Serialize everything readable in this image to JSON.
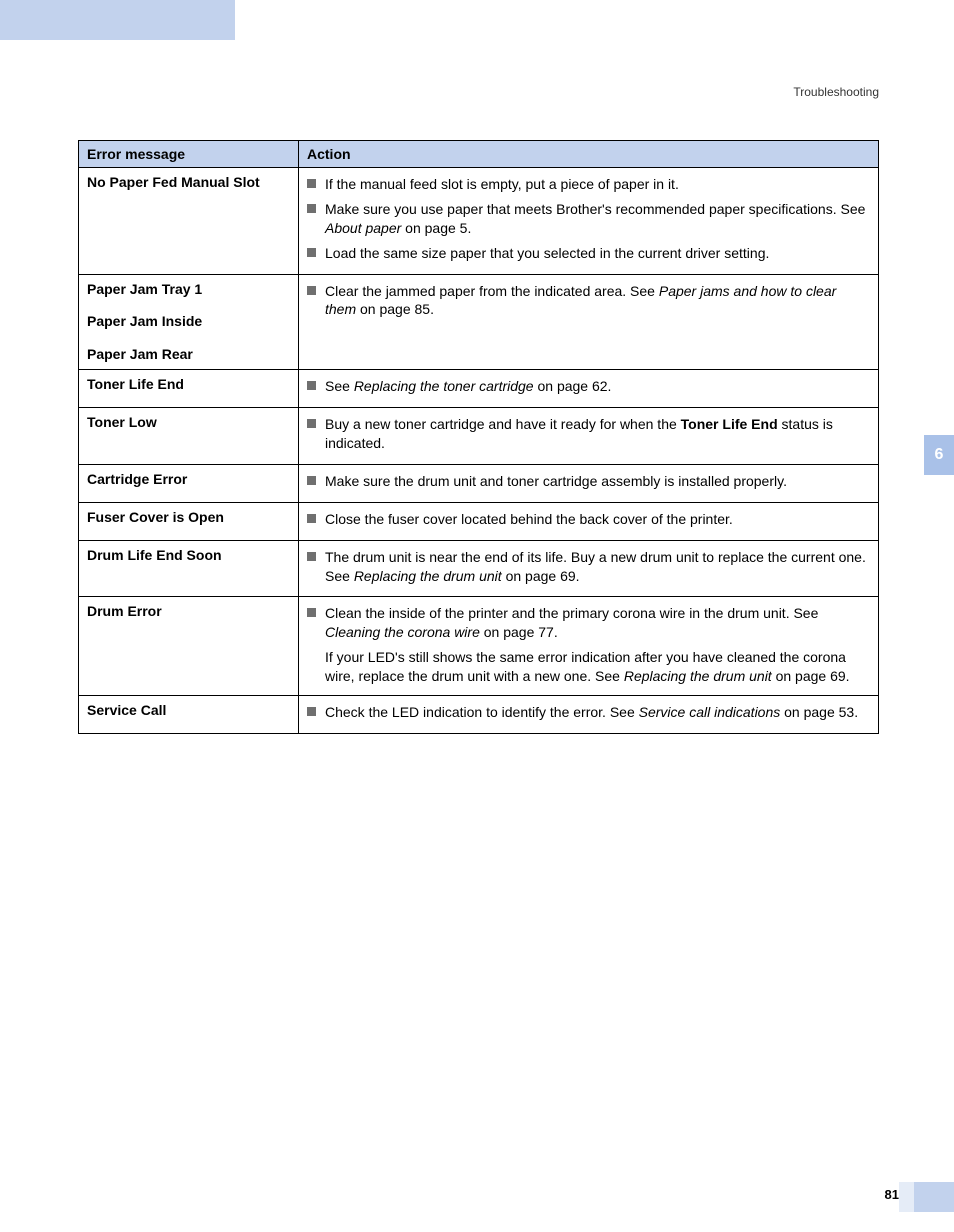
{
  "breadcrumb": "Troubleshooting",
  "side_tab": "6",
  "page_number": "81",
  "header": {
    "col1": "Error message",
    "col2": "Action"
  },
  "rows": {
    "r1": {
      "msg": "No Paper Fed Manual Slot",
      "a1": "If the manual feed slot is empty, put a piece of paper in it.",
      "a2a": "Make sure you use paper that meets Brother's recommended paper specifications. See ",
      "a2b": "About paper",
      "a2c": " on page 5.",
      "a3": "Load the same size paper that you selected in the current driver setting."
    },
    "r2": {
      "msg1": "Paper Jam Tray 1",
      "msg2": "Paper Jam Inside",
      "msg3": "Paper Jam Rear",
      "a1a": "Clear the jammed paper from the indicated area. See ",
      "a1b": "Paper jams and how to clear them",
      "a1c": " on page 85."
    },
    "r3": {
      "msg": "Toner Life End",
      "a1a": "See ",
      "a1b": "Replacing the toner cartridge",
      "a1c": " on page 62."
    },
    "r4": {
      "msg": "Toner Low",
      "a1a": "Buy a new toner cartridge and have it ready for when the ",
      "a1b": "Toner Life End",
      "a1c": " status is indicated."
    },
    "r5": {
      "msg": "Cartridge Error",
      "a1": "Make sure the drum unit and toner cartridge assembly is installed properly."
    },
    "r6": {
      "msg": "Fuser Cover is Open",
      "a1": "Close the fuser cover located behind the back cover of the printer."
    },
    "r7": {
      "msg": "Drum Life End Soon",
      "a1a": "The drum unit is near the end of its life. Buy a new drum unit to replace the current one. See ",
      "a1b": "Replacing the drum unit",
      "a1c": " on page 69."
    },
    "r8": {
      "msg": "Drum Error",
      "a1a": "Clean the inside of the printer and the primary corona wire in the drum unit. See ",
      "a1b": "Cleaning the corona wire",
      "a1c": " on page 77.",
      "a2a": "If your LED's still shows the same error indication after you have cleaned the corona wire, replace the drum unit with a new one. See ",
      "a2b": "Replacing the drum unit",
      "a2c": " on page 69."
    },
    "r9": {
      "msg": "Service Call",
      "a1a": "Check the LED indication to identify the error. See ",
      "a1b": "Service call indications",
      "a1c": " on page 53."
    }
  }
}
